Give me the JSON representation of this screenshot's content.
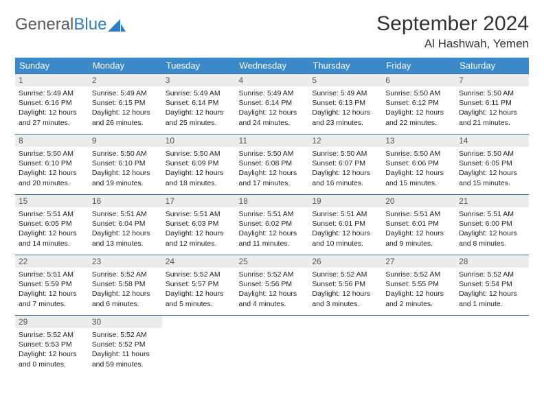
{
  "logo": {
    "text1": "General",
    "text2": "Blue"
  },
  "title": "September 2024",
  "location": "Al Hashwah, Yemen",
  "colors": {
    "header_bg": "#3b89c9",
    "header_text": "#ffffff",
    "row_border": "#3b6e9a",
    "daynum_bg": "#ececec",
    "logo_gray": "#5a5a5a",
    "logo_blue": "#2f7bbf"
  },
  "weekdays": [
    "Sunday",
    "Monday",
    "Tuesday",
    "Wednesday",
    "Thursday",
    "Friday",
    "Saturday"
  ],
  "days": [
    {
      "n": 1,
      "sunrise": "5:49 AM",
      "sunset": "6:16 PM",
      "dl": "12 hours and 27 minutes."
    },
    {
      "n": 2,
      "sunrise": "5:49 AM",
      "sunset": "6:15 PM",
      "dl": "12 hours and 26 minutes."
    },
    {
      "n": 3,
      "sunrise": "5:49 AM",
      "sunset": "6:14 PM",
      "dl": "12 hours and 25 minutes."
    },
    {
      "n": 4,
      "sunrise": "5:49 AM",
      "sunset": "6:14 PM",
      "dl": "12 hours and 24 minutes."
    },
    {
      "n": 5,
      "sunrise": "5:49 AM",
      "sunset": "6:13 PM",
      "dl": "12 hours and 23 minutes."
    },
    {
      "n": 6,
      "sunrise": "5:50 AM",
      "sunset": "6:12 PM",
      "dl": "12 hours and 22 minutes."
    },
    {
      "n": 7,
      "sunrise": "5:50 AM",
      "sunset": "6:11 PM",
      "dl": "12 hours and 21 minutes."
    },
    {
      "n": 8,
      "sunrise": "5:50 AM",
      "sunset": "6:10 PM",
      "dl": "12 hours and 20 minutes."
    },
    {
      "n": 9,
      "sunrise": "5:50 AM",
      "sunset": "6:10 PM",
      "dl": "12 hours and 19 minutes."
    },
    {
      "n": 10,
      "sunrise": "5:50 AM",
      "sunset": "6:09 PM",
      "dl": "12 hours and 18 minutes."
    },
    {
      "n": 11,
      "sunrise": "5:50 AM",
      "sunset": "6:08 PM",
      "dl": "12 hours and 17 minutes."
    },
    {
      "n": 12,
      "sunrise": "5:50 AM",
      "sunset": "6:07 PM",
      "dl": "12 hours and 16 minutes."
    },
    {
      "n": 13,
      "sunrise": "5:50 AM",
      "sunset": "6:06 PM",
      "dl": "12 hours and 15 minutes."
    },
    {
      "n": 14,
      "sunrise": "5:50 AM",
      "sunset": "6:05 PM",
      "dl": "12 hours and 15 minutes."
    },
    {
      "n": 15,
      "sunrise": "5:51 AM",
      "sunset": "6:05 PM",
      "dl": "12 hours and 14 minutes."
    },
    {
      "n": 16,
      "sunrise": "5:51 AM",
      "sunset": "6:04 PM",
      "dl": "12 hours and 13 minutes."
    },
    {
      "n": 17,
      "sunrise": "5:51 AM",
      "sunset": "6:03 PM",
      "dl": "12 hours and 12 minutes."
    },
    {
      "n": 18,
      "sunrise": "5:51 AM",
      "sunset": "6:02 PM",
      "dl": "12 hours and 11 minutes."
    },
    {
      "n": 19,
      "sunrise": "5:51 AM",
      "sunset": "6:01 PM",
      "dl": "12 hours and 10 minutes."
    },
    {
      "n": 20,
      "sunrise": "5:51 AM",
      "sunset": "6:01 PM",
      "dl": "12 hours and 9 minutes."
    },
    {
      "n": 21,
      "sunrise": "5:51 AM",
      "sunset": "6:00 PM",
      "dl": "12 hours and 8 minutes."
    },
    {
      "n": 22,
      "sunrise": "5:51 AM",
      "sunset": "5:59 PM",
      "dl": "12 hours and 7 minutes."
    },
    {
      "n": 23,
      "sunrise": "5:52 AM",
      "sunset": "5:58 PM",
      "dl": "12 hours and 6 minutes."
    },
    {
      "n": 24,
      "sunrise": "5:52 AM",
      "sunset": "5:57 PM",
      "dl": "12 hours and 5 minutes."
    },
    {
      "n": 25,
      "sunrise": "5:52 AM",
      "sunset": "5:56 PM",
      "dl": "12 hours and 4 minutes."
    },
    {
      "n": 26,
      "sunrise": "5:52 AM",
      "sunset": "5:56 PM",
      "dl": "12 hours and 3 minutes."
    },
    {
      "n": 27,
      "sunrise": "5:52 AM",
      "sunset": "5:55 PM",
      "dl": "12 hours and 2 minutes."
    },
    {
      "n": 28,
      "sunrise": "5:52 AM",
      "sunset": "5:54 PM",
      "dl": "12 hours and 1 minute."
    },
    {
      "n": 29,
      "sunrise": "5:52 AM",
      "sunset": "5:53 PM",
      "dl": "12 hours and 0 minutes."
    },
    {
      "n": 30,
      "sunrise": "5:52 AM",
      "sunset": "5:52 PM",
      "dl": "11 hours and 59 minutes."
    }
  ],
  "labels": {
    "sunrise": "Sunrise:",
    "sunset": "Sunset:",
    "daylight": "Daylight:"
  }
}
